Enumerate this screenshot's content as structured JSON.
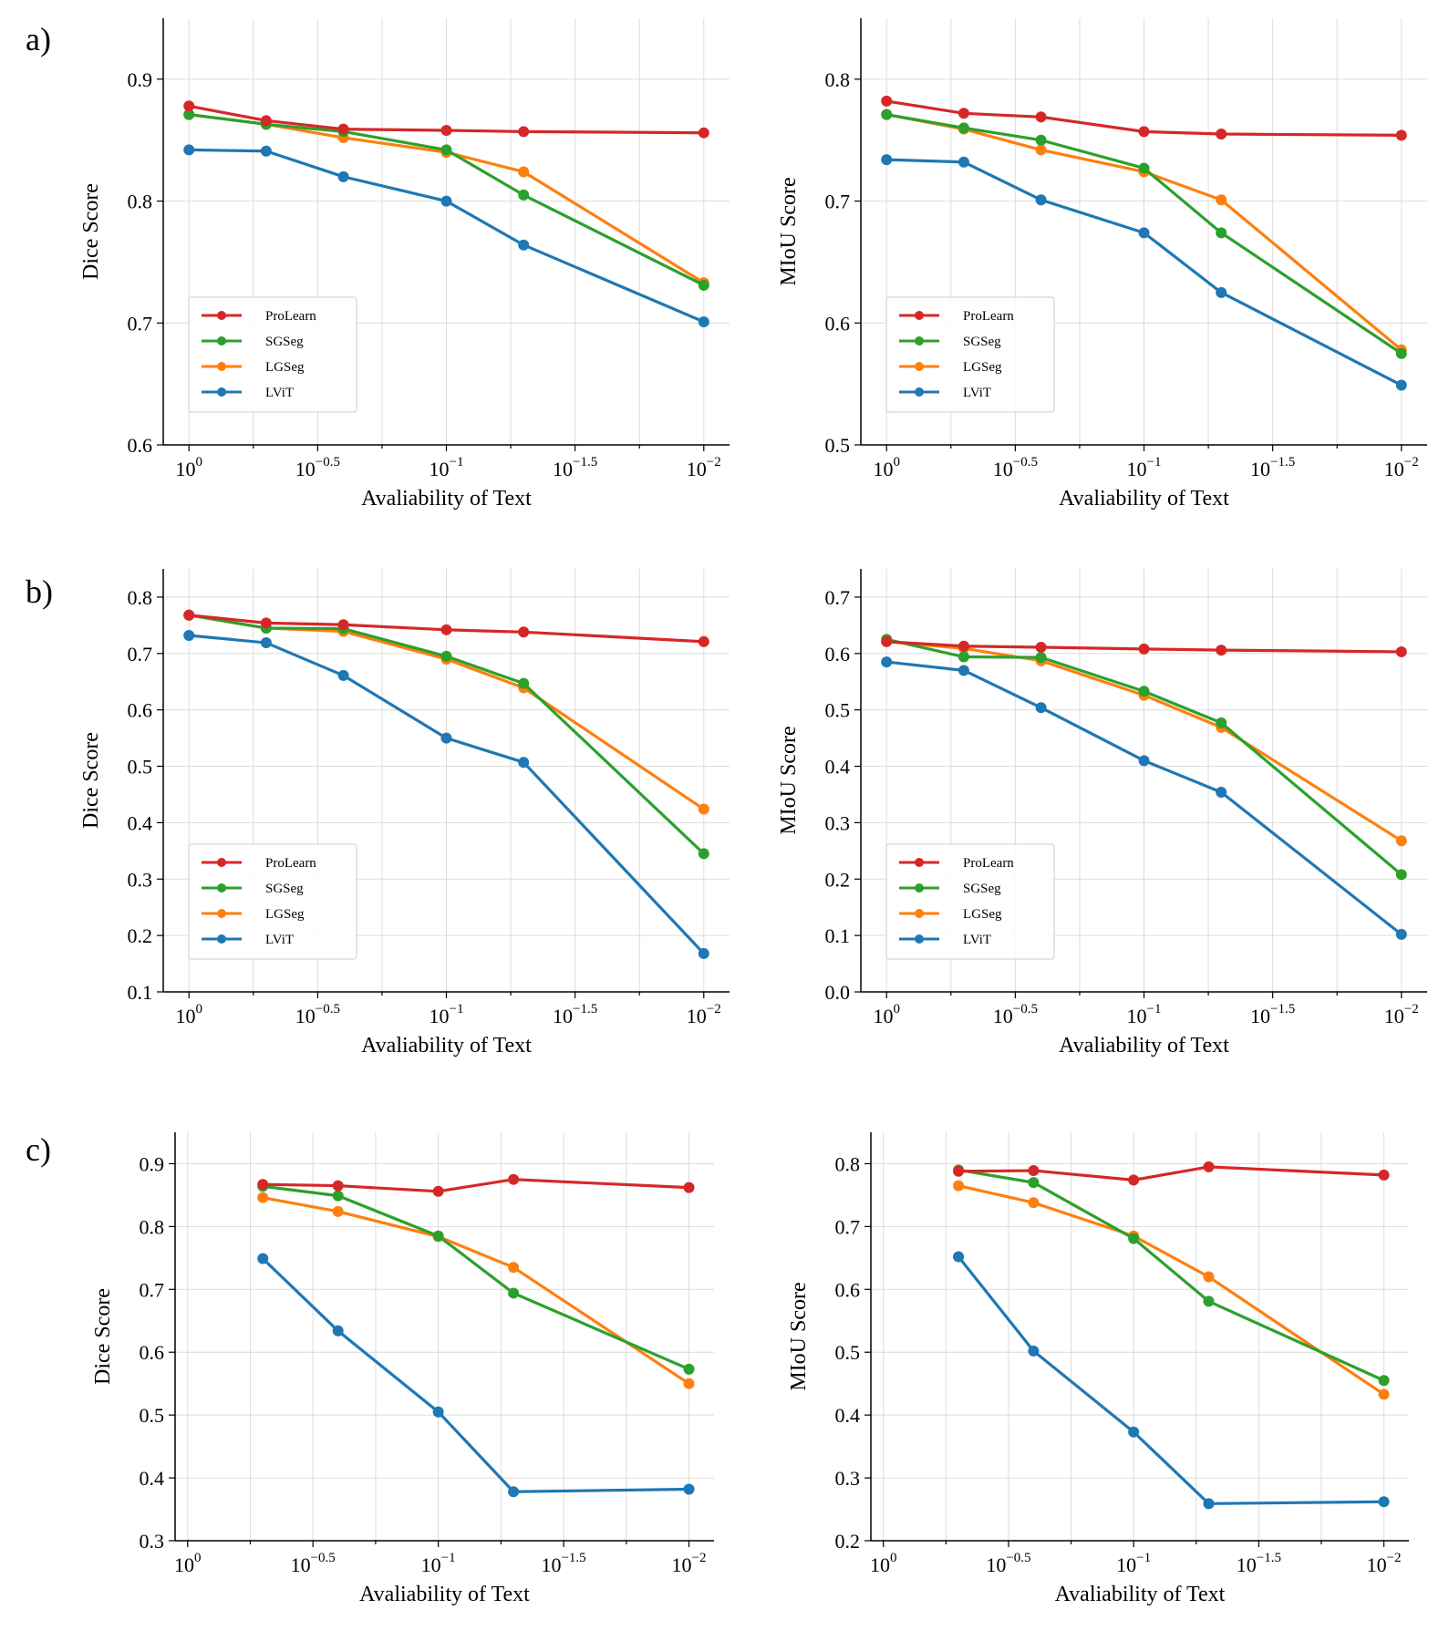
{
  "panel_labels": [
    "a)",
    "b)",
    "c)"
  ],
  "colors": {
    "ProLearn": "#d62728",
    "SGSeg": "#2ca02c",
    "LGSeg": "#ff7f0e",
    "LViT": "#1f77b4"
  },
  "x_tick_labels": [
    {
      "base": "10",
      "exp": "0"
    },
    {
      "base": "10",
      "exp": "−0.5"
    },
    {
      "base": "10",
      "exp": "−1"
    },
    {
      "base": "10",
      "exp": "−1.5"
    },
    {
      "base": "10",
      "exp": "−2"
    }
  ],
  "chart_data": [
    {
      "id": "a-dice",
      "type": "line",
      "panel": "a)",
      "xlabel": "Avaliability of Text",
      "ylabel": "Dice Score",
      "xlim": [
        -0.1,
        2.1
      ],
      "ylim": [
        0.6,
        0.95
      ],
      "yticks": [
        0.6,
        0.7,
        0.8,
        0.9
      ],
      "ytick_labels": [
        "0.6",
        "0.7",
        "0.8",
        "0.9"
      ],
      "legend": "lower-left",
      "x": [
        0,
        0.3,
        0.6,
        1.0,
        1.3,
        2.0
      ],
      "series": [
        {
          "name": "ProLearn",
          "values": [
            0.878,
            0.866,
            0.859,
            0.858,
            0.857,
            0.856
          ]
        },
        {
          "name": "SGSeg",
          "values": [
            0.871,
            0.863,
            0.857,
            0.842,
            0.805,
            0.731
          ]
        },
        {
          "name": "LGSeg",
          "values": [
            0.871,
            0.863,
            0.852,
            0.84,
            0.824,
            0.733
          ]
        },
        {
          "name": "LViT",
          "values": [
            0.842,
            0.841,
            0.82,
            0.8,
            0.764,
            0.701
          ]
        }
      ]
    },
    {
      "id": "a-miou",
      "type": "line",
      "panel": "a)",
      "xlabel": "Avaliability of Text",
      "ylabel": "MIoU Score",
      "xlim": [
        -0.1,
        2.1
      ],
      "ylim": [
        0.5,
        0.85
      ],
      "yticks": [
        0.5,
        0.6,
        0.7,
        0.8
      ],
      "ytick_labels": [
        "0.5",
        "0.6",
        "0.7",
        "0.8"
      ],
      "legend": "lower-left",
      "x": [
        0,
        0.3,
        0.6,
        1.0,
        1.3,
        2.0
      ],
      "series": [
        {
          "name": "ProLearn",
          "values": [
            0.782,
            0.772,
            0.769,
            0.757,
            0.755,
            0.754
          ]
        },
        {
          "name": "SGSeg",
          "values": [
            0.771,
            0.76,
            0.75,
            0.727,
            0.674,
            0.575
          ]
        },
        {
          "name": "LGSeg",
          "values": [
            0.771,
            0.759,
            0.742,
            0.724,
            0.701,
            0.578
          ]
        },
        {
          "name": "LViT",
          "values": [
            0.734,
            0.732,
            0.701,
            0.674,
            0.625,
            0.549
          ]
        }
      ]
    },
    {
      "id": "b-dice",
      "type": "line",
      "panel": "b)",
      "xlabel": "Avaliability of Text",
      "ylabel": "Dice Score",
      "xlim": [
        -0.1,
        2.1
      ],
      "ylim": [
        0.1,
        0.85
      ],
      "yticks": [
        0.1,
        0.2,
        0.3,
        0.4,
        0.5,
        0.6,
        0.7,
        0.8
      ],
      "ytick_labels": [
        "0.1",
        "0.2",
        "0.3",
        "0.4",
        "0.5",
        "0.6",
        "0.7",
        "0.8"
      ],
      "legend": "lower-left",
      "x": [
        0,
        0.3,
        0.6,
        1.0,
        1.3,
        2.0
      ],
      "series": [
        {
          "name": "ProLearn",
          "values": [
            0.768,
            0.754,
            0.751,
            0.742,
            0.738,
            0.721
          ]
        },
        {
          "name": "SGSeg",
          "values": [
            0.768,
            0.745,
            0.744,
            0.695,
            0.647,
            0.345
          ]
        },
        {
          "name": "LGSeg",
          "values": [
            0.768,
            0.745,
            0.739,
            0.69,
            0.639,
            0.424
          ]
        },
        {
          "name": "LViT",
          "values": [
            0.732,
            0.719,
            0.661,
            0.55,
            0.507,
            0.168
          ]
        }
      ]
    },
    {
      "id": "b-miou",
      "type": "line",
      "panel": "b)",
      "xlabel": "Avaliability of Text",
      "ylabel": "MIoU Score",
      "xlim": [
        -0.1,
        2.1
      ],
      "ylim": [
        0.0,
        0.75
      ],
      "yticks": [
        0.0,
        0.1,
        0.2,
        0.3,
        0.4,
        0.5,
        0.6,
        0.7
      ],
      "ytick_labels": [
        "0.0",
        "0.1",
        "0.2",
        "0.3",
        "0.4",
        "0.5",
        "0.6",
        "0.7"
      ],
      "legend": "lower-left",
      "x": [
        0,
        0.3,
        0.6,
        1.0,
        1.3,
        2.0
      ],
      "series": [
        {
          "name": "ProLearn",
          "values": [
            0.621,
            0.613,
            0.611,
            0.608,
            0.606,
            0.603
          ]
        },
        {
          "name": "SGSeg",
          "values": [
            0.625,
            0.594,
            0.593,
            0.533,
            0.477,
            0.208
          ]
        },
        {
          "name": "LGSeg",
          "values": [
            0.621,
            0.609,
            0.587,
            0.526,
            0.469,
            0.268
          ]
        },
        {
          "name": "LViT",
          "values": [
            0.585,
            0.57,
            0.504,
            0.41,
            0.354,
            0.102
          ]
        }
      ]
    },
    {
      "id": "c-dice",
      "type": "line",
      "panel": "c)",
      "xlabel": "Avaliability of Text",
      "ylabel": "Dice Score",
      "xlim": [
        -0.05,
        2.1
      ],
      "ylim": [
        0.3,
        0.95
      ],
      "yticks": [
        0.3,
        0.4,
        0.5,
        0.6,
        0.7,
        0.8,
        0.9
      ],
      "ytick_labels": [
        "0.3",
        "0.4",
        "0.5",
        "0.6",
        "0.7",
        "0.8",
        "0.9"
      ],
      "legend": "none",
      "x": [
        0.3,
        0.6,
        1.0,
        1.3,
        2.0
      ],
      "series": [
        {
          "name": "ProLearn",
          "values": [
            0.867,
            0.865,
            0.856,
            0.875,
            0.862
          ]
        },
        {
          "name": "SGSeg",
          "values": [
            0.864,
            0.849,
            0.785,
            0.694,
            0.573
          ]
        },
        {
          "name": "LGSeg",
          "values": [
            0.846,
            0.824,
            0.784,
            0.735,
            0.55
          ]
        },
        {
          "name": "LViT",
          "values": [
            0.749,
            0.634,
            0.505,
            0.378,
            0.382
          ]
        }
      ]
    },
    {
      "id": "c-miou",
      "type": "line",
      "panel": "c)",
      "xlabel": "Avaliability of Text",
      "ylabel": "MIoU Score",
      "xlim": [
        -0.05,
        2.1
      ],
      "ylim": [
        0.2,
        0.85
      ],
      "yticks": [
        0.2,
        0.3,
        0.4,
        0.5,
        0.6,
        0.7,
        0.8
      ],
      "ytick_labels": [
        "0.2",
        "0.3",
        "0.4",
        "0.5",
        "0.6",
        "0.7",
        "0.8"
      ],
      "legend": "none",
      "x": [
        0.3,
        0.6,
        1.0,
        1.3,
        2.0
      ],
      "series": [
        {
          "name": "ProLearn",
          "values": [
            0.788,
            0.789,
            0.774,
            0.795,
            0.782
          ]
        },
        {
          "name": "SGSeg",
          "values": [
            0.79,
            0.77,
            0.681,
            0.581,
            0.455
          ]
        },
        {
          "name": "LGSeg",
          "values": [
            0.765,
            0.738,
            0.685,
            0.62,
            0.433
          ]
        },
        {
          "name": "LViT",
          "values": [
            0.652,
            0.502,
            0.373,
            0.259,
            0.262
          ]
        }
      ]
    }
  ]
}
